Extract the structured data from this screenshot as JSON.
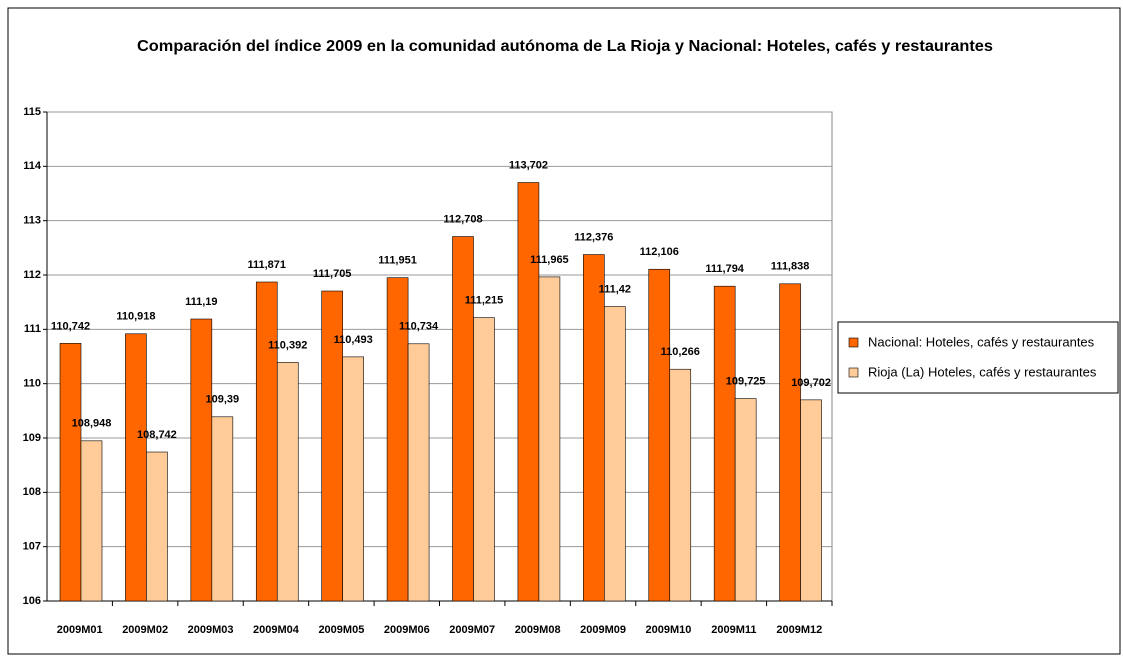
{
  "chart_data": {
    "type": "bar",
    "title": "Comparación del índice 2009 en la comunidad autónoma de La Rioja y Nacional: Hoteles, cafés y restaurantes",
    "categories": [
      "2009M01",
      "2009M02",
      "2009M03",
      "2009M04",
      "2009M05",
      "2009M06",
      "2009M07",
      "2009M08",
      "2009M09",
      "2009M10",
      "2009M11",
      "2009M12"
    ],
    "series": [
      {
        "name": "Nacional: Hoteles, cafés y restaurantes",
        "color": "#ff6600",
        "values": [
          110.742,
          110.918,
          111.19,
          111.871,
          111.705,
          111.951,
          112.708,
          113.702,
          112.376,
          112.106,
          111.794,
          111.838
        ],
        "value_labels": [
          "110,742",
          "110,918",
          "111,19",
          "111,871",
          "111,705",
          "111,951",
          "112,708",
          "113,702",
          "112,376",
          "112,106",
          "111,794",
          "111,838"
        ]
      },
      {
        "name": "Rioja (La) Hoteles, cafés y restaurantes",
        "color": "#ffcc99",
        "values": [
          108.948,
          108.742,
          109.39,
          110.392,
          110.493,
          110.734,
          111.215,
          111.965,
          111.42,
          110.266,
          109.725,
          109.702
        ],
        "value_labels": [
          "108,948",
          "108,742",
          "109,39",
          "110,392",
          "110,493",
          "110,734",
          "111,215",
          "111,965",
          "111,42",
          "110,266",
          "109,725",
          "109,702"
        ]
      }
    ],
    "ylim": [
      106,
      115
    ],
    "yticks": [
      106,
      107,
      108,
      109,
      110,
      111,
      112,
      113,
      114,
      115
    ],
    "grid": true,
    "legend": "right"
  }
}
